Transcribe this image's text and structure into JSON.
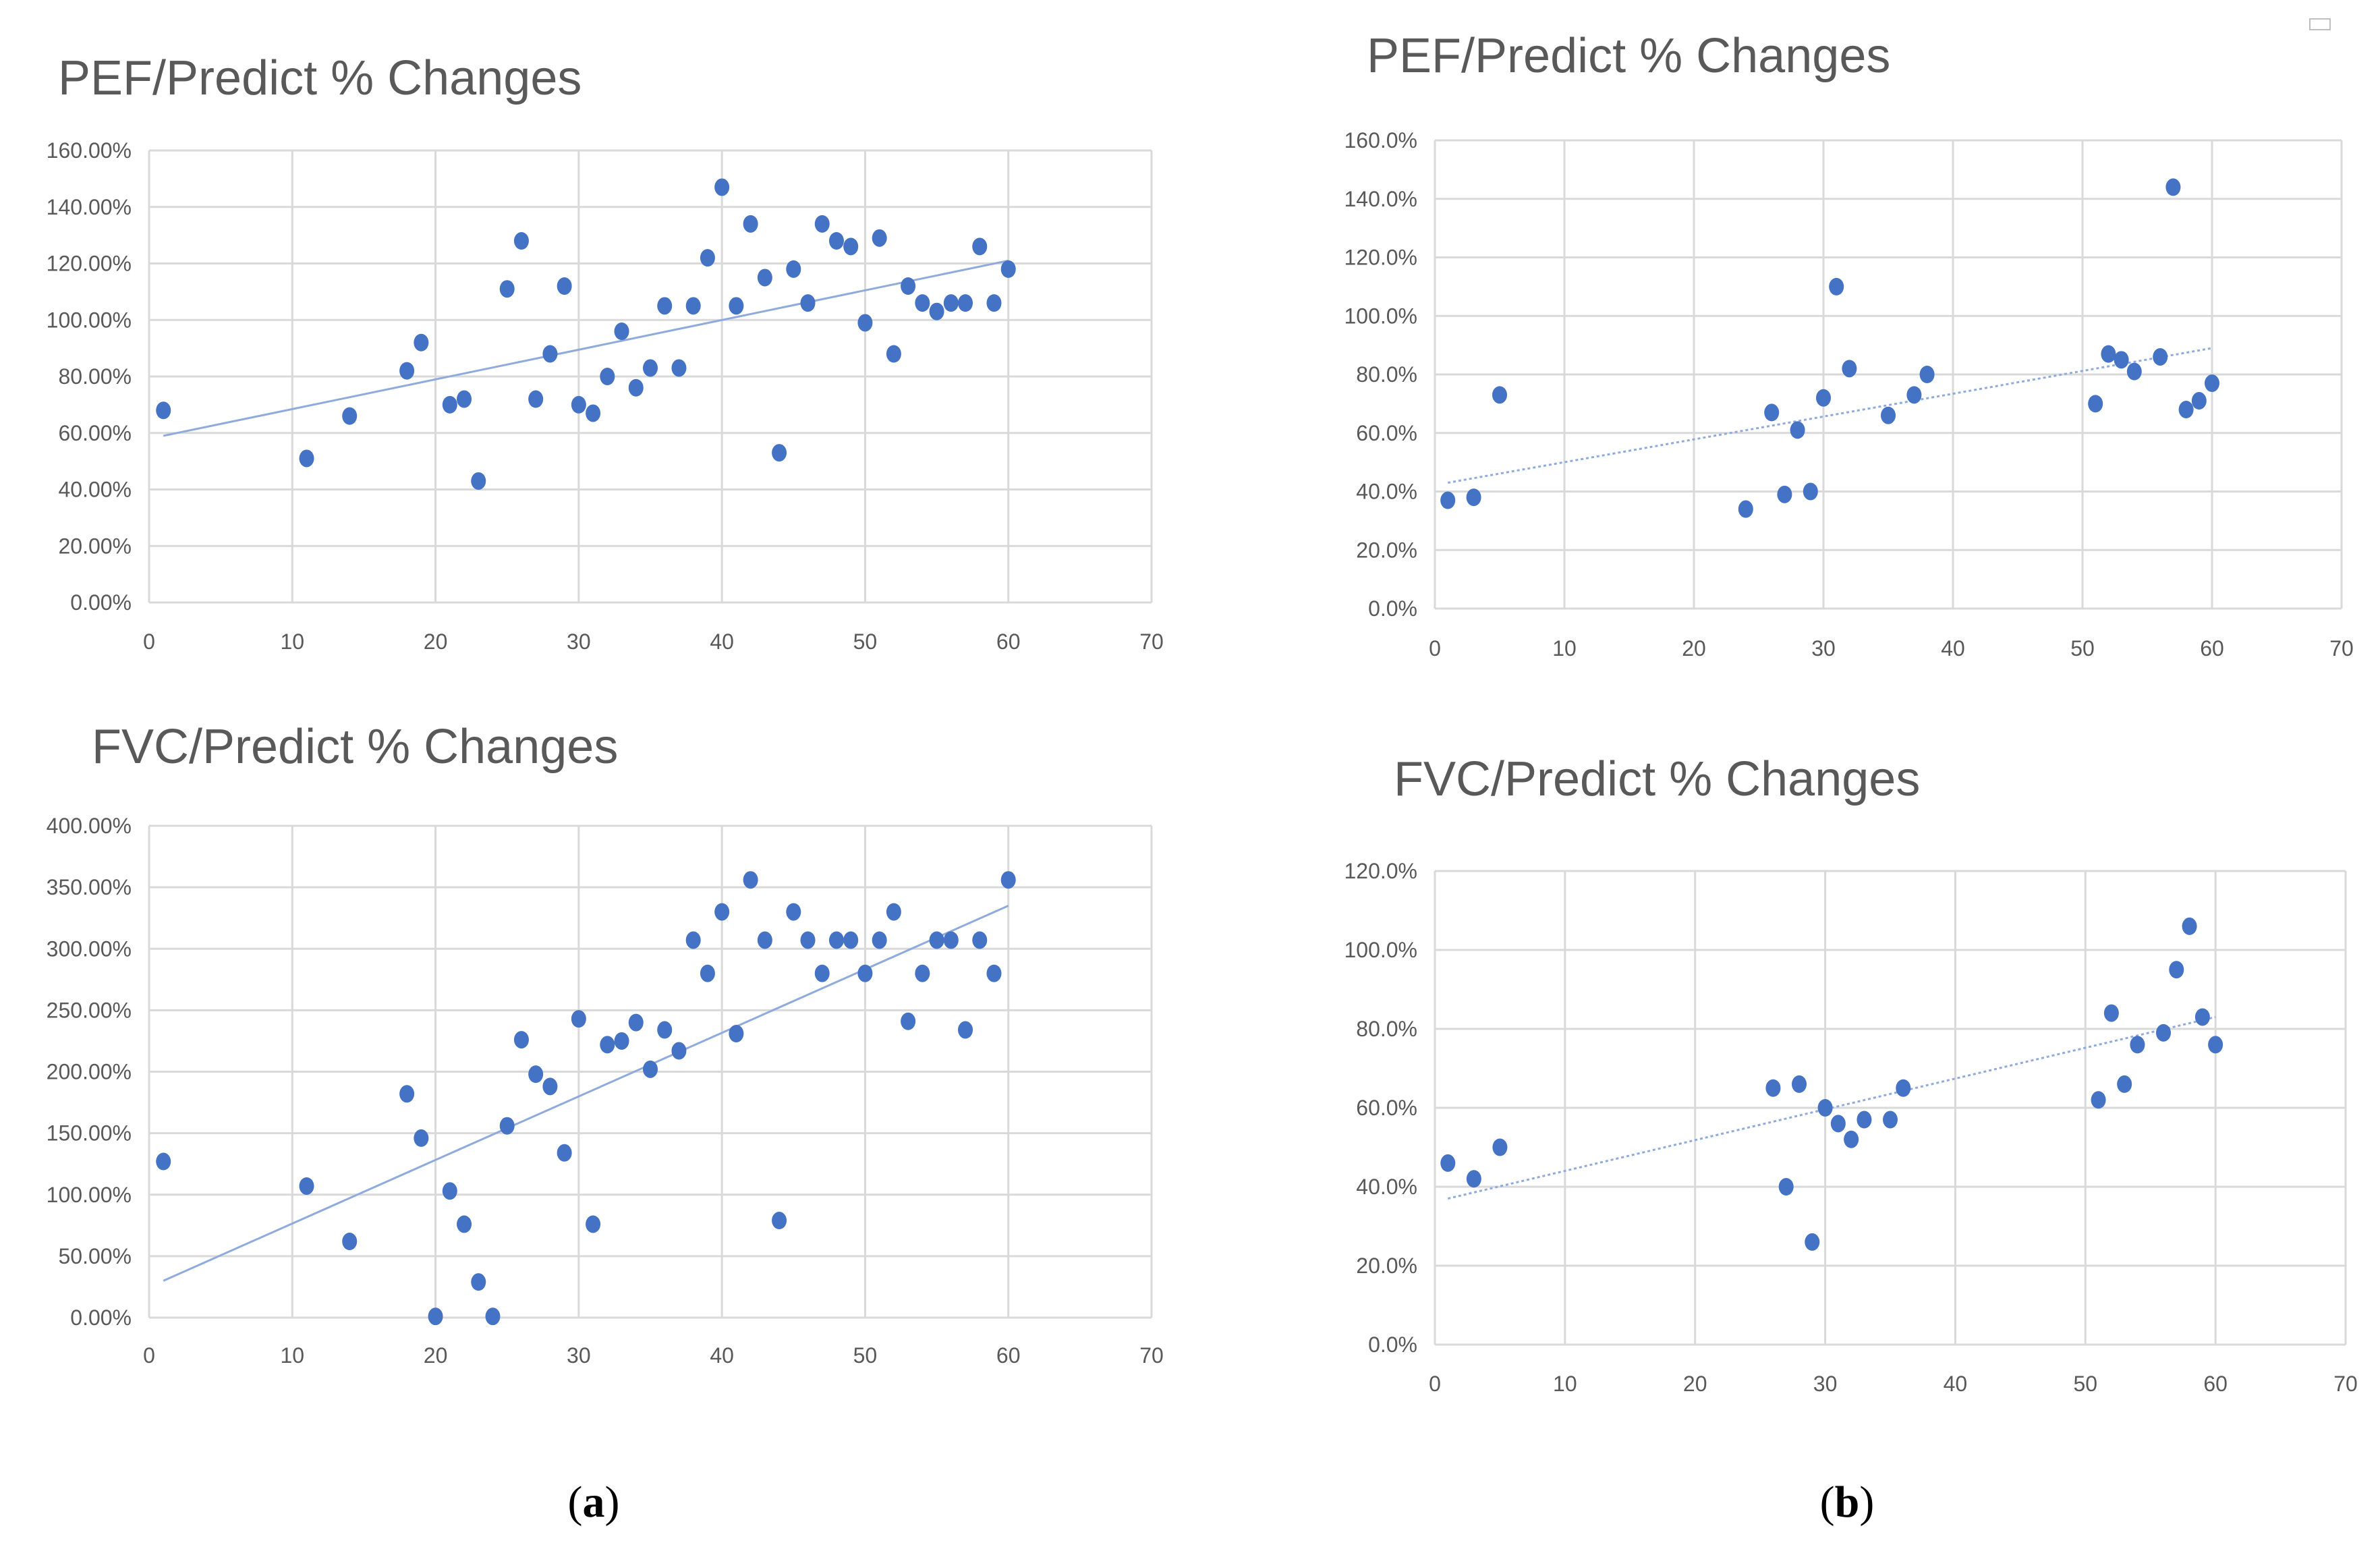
{
  "figure": {
    "panel_labels": [
      {
        "open": "(",
        "letter": "a",
        "close": ")"
      },
      {
        "open": "(",
        "letter": "b",
        "close": ")"
      }
    ]
  },
  "colors": {
    "marker": "#4472c4",
    "trendline": "#8faadc",
    "grid": "#d9d9d9",
    "text": "#595959"
  },
  "chart_data": [
    {
      "id": "a-pef",
      "type": "scatter",
      "title": "PEF/Predict % Changes",
      "xlabel": "",
      "ylabel": "",
      "xlim": [
        0,
        70
      ],
      "ylim": [
        0,
        160
      ],
      "x_ticks": [
        0,
        10,
        20,
        30,
        40,
        50,
        60,
        70
      ],
      "y_ticks": [
        0,
        20,
        40,
        60,
        80,
        100,
        120,
        140,
        160
      ],
      "y_tick_labels": [
        "0.00%",
        "20.00%",
        "40.00%",
        "60.00%",
        "80.00%",
        "100.00%",
        "120.00%",
        "140.00%",
        "160.00%"
      ],
      "grid": true,
      "trendline": {
        "style": "solid",
        "x": [
          1,
          60
        ],
        "y": [
          59,
          121
        ]
      },
      "x": [
        1,
        11,
        14,
        18,
        19,
        21,
        22,
        23,
        25,
        26,
        27,
        28,
        29,
        30,
        31,
        32,
        33,
        34,
        35,
        36,
        37,
        38,
        39,
        40,
        41,
        42,
        43,
        44,
        45,
        46,
        47,
        48,
        49,
        50,
        51,
        52,
        53,
        54,
        55,
        56,
        57,
        58,
        59,
        60
      ],
      "y": [
        68,
        51,
        66,
        82,
        92,
        70,
        72,
        43,
        111,
        128,
        72,
        88,
        112,
        70,
        67,
        80,
        96,
        76,
        83,
        105,
        83,
        105,
        122,
        147,
        105,
        134,
        115,
        53,
        118,
        106,
        134,
        128,
        126,
        99,
        129,
        88,
        112,
        106,
        103,
        106,
        106,
        126,
        106,
        118
      ]
    },
    {
      "id": "a-fvc",
      "type": "scatter",
      "title": "FVC/Predict % Changes",
      "xlabel": "",
      "ylabel": "",
      "xlim": [
        0,
        70
      ],
      "ylim": [
        0,
        400
      ],
      "x_ticks": [
        0,
        10,
        20,
        30,
        40,
        50,
        60,
        70
      ],
      "y_ticks": [
        0,
        50,
        100,
        150,
        200,
        250,
        300,
        350,
        400
      ],
      "y_tick_labels": [
        "0.00%",
        "50.00%",
        "100.00%",
        "150.00%",
        "200.00%",
        "250.00%",
        "300.00%",
        "350.00%",
        "400.00%"
      ],
      "grid": true,
      "trendline": {
        "style": "solid",
        "x": [
          1,
          60
        ],
        "y": [
          30,
          335
        ]
      },
      "x": [
        1,
        11,
        14,
        18,
        19,
        20,
        21,
        22,
        23,
        24,
        25,
        26,
        27,
        28,
        29,
        30,
        31,
        32,
        33,
        34,
        35,
        36,
        37,
        38,
        39,
        40,
        41,
        42,
        43,
        44,
        45,
        46,
        47,
        48,
        49,
        50,
        51,
        52,
        53,
        54,
        55,
        56,
        57,
        58,
        59,
        60
      ],
      "y": [
        127,
        107,
        62,
        182,
        146,
        1,
        103,
        76,
        29,
        1,
        156,
        226,
        198,
        188,
        134,
        243,
        76,
        222,
        225,
        240,
        202,
        234,
        217,
        307,
        280,
        330,
        231,
        356,
        307,
        79,
        330,
        307,
        280,
        307,
        307,
        280,
        307,
        330,
        241,
        280,
        307,
        307,
        234,
        307,
        280,
        356
      ]
    },
    {
      "id": "b-pef",
      "type": "scatter",
      "title": "PEF/Predict % Changes",
      "xlabel": "",
      "ylabel": "",
      "xlim": [
        0,
        70
      ],
      "ylim": [
        0,
        160
      ],
      "x_ticks": [
        0,
        10,
        20,
        30,
        40,
        50,
        60,
        70
      ],
      "y_ticks": [
        0,
        20,
        40,
        60,
        80,
        100,
        120,
        140,
        160
      ],
      "y_tick_labels": [
        "0.0%",
        "20.0%",
        "40.0%",
        "60.0%",
        "80.0%",
        "100.0%",
        "120.0%",
        "140.0%",
        "160.0%"
      ],
      "grid": true,
      "trendline": {
        "style": "dotted",
        "x": [
          1,
          60
        ],
        "y": [
          43,
          89
        ]
      },
      "x": [
        1,
        3,
        5,
        24,
        26,
        27,
        28,
        29,
        30,
        31,
        32,
        35,
        37,
        38,
        51,
        52,
        53,
        54,
        56,
        57,
        58,
        59,
        60
      ],
      "y": [
        37,
        38,
        73,
        34,
        67,
        39,
        61,
        40,
        72,
        110,
        82,
        66,
        73,
        80,
        70,
        87,
        85,
        81,
        86,
        144,
        68,
        71,
        77
      ]
    },
    {
      "id": "b-fvc",
      "type": "scatter",
      "title": "FVC/Predict % Changes",
      "xlabel": "",
      "ylabel": "",
      "xlim": [
        0,
        70
      ],
      "ylim": [
        0,
        120
      ],
      "x_ticks": [
        0,
        10,
        20,
        30,
        40,
        50,
        60,
        70
      ],
      "y_ticks": [
        0,
        20,
        40,
        60,
        80,
        100,
        120
      ],
      "y_tick_labels": [
        "0.0%",
        "20.0%",
        "40.0%",
        "60.0%",
        "80.0%",
        "100.0%",
        "120.0%"
      ],
      "grid": true,
      "trendline": {
        "style": "dotted",
        "x": [
          1,
          60
        ],
        "y": [
          37,
          83
        ]
      },
      "x": [
        1,
        3,
        5,
        26,
        27,
        28,
        29,
        30,
        31,
        32,
        33,
        35,
        36,
        51,
        52,
        53,
        54,
        56,
        57,
        58,
        59,
        60
      ],
      "y": [
        46,
        42,
        50,
        65,
        40,
        66,
        26,
        60,
        56,
        52,
        57,
        57,
        65,
        62,
        84,
        66,
        76,
        79,
        95,
        106,
        83,
        76
      ]
    }
  ]
}
